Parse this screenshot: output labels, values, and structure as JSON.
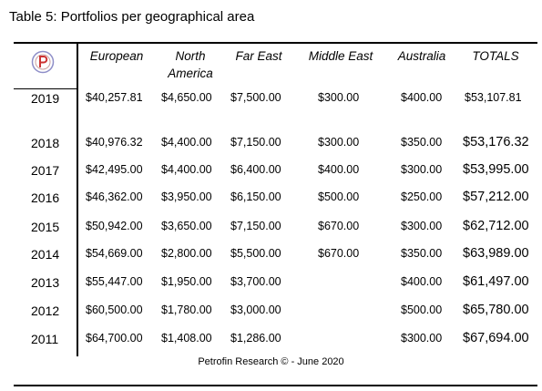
{
  "title": "Table 5: Portfolios per geographical area",
  "table": {
    "columns": [
      "European",
      "North America",
      "Far East",
      "Middle East",
      "Australia",
      "TOTALS"
    ],
    "rows": [
      {
        "year": "2019",
        "cells": [
          "$40,257.81",
          "$4,650.00",
          "$7,500.00",
          "$300.00",
          "$400.00",
          "$53,107.81"
        ]
      },
      {
        "year": "2018",
        "cells": [
          "$40,976.32",
          "$4,400.00",
          "$7,150.00",
          "$300.00",
          "$350.00",
          "$53,176.32"
        ]
      },
      {
        "year": "2017",
        "cells": [
          "$42,495.00",
          "$4,400.00",
          "$6,400.00",
          "$400.00",
          "$300.00",
          "$53,995.00"
        ]
      },
      {
        "year": "2016",
        "cells": [
          "$46,362.00",
          "$3,950.00",
          "$6,150.00",
          "$500.00",
          "$250.00",
          "$57,212.00"
        ]
      },
      {
        "year": "2015",
        "cells": [
          "$50,942.00",
          "$3,650.00",
          "$7,150.00",
          "$670.00",
          "$300.00",
          "$62,712.00"
        ]
      },
      {
        "year": "2014",
        "cells": [
          "$54,669.00",
          "$2,800.00",
          "$5,500.00",
          "$670.00",
          "$350.00",
          "$63,989.00"
        ]
      },
      {
        "year": "2013",
        "cells": [
          "$55,447.00",
          "$1,950.00",
          "$3,700.00",
          null,
          "$400.00",
          "$61,497.00"
        ]
      },
      {
        "year": "2012",
        "cells": [
          "$60,500.00",
          "$1,780.00",
          "$3,000.00",
          null,
          "$500.00",
          "$65,780.00"
        ]
      },
      {
        "year": "2011",
        "cells": [
          "$64,700.00",
          "$1,408.00",
          "$1,286.00",
          null,
          "$300.00",
          "$67,694.00"
        ]
      }
    ]
  },
  "footer": "Petrofin Research © - June 2020"
}
